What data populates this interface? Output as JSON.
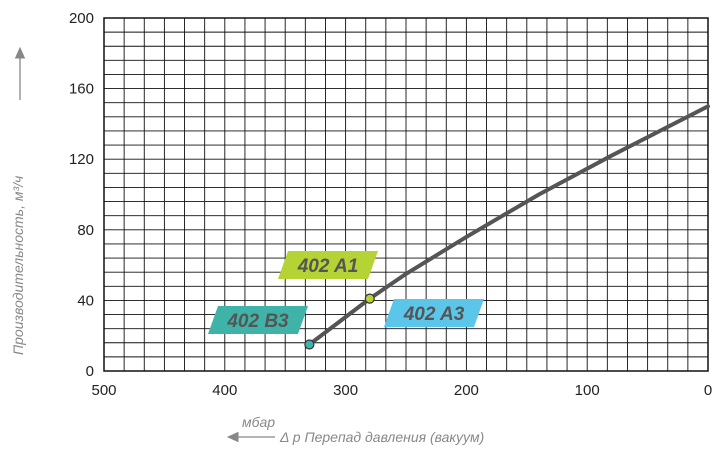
{
  "chart_data": {
    "type": "line",
    "title": "",
    "xlabel": "Δ p Перепад давления (вакуум)",
    "xunit": "мбар",
    "ylabel": "Производительность, м³/ч",
    "xlim": [
      500,
      0
    ],
    "ylim": [
      0,
      200
    ],
    "x_ticks": [
      "500",
      "400",
      "300",
      "200",
      "100",
      "0"
    ],
    "y_ticks": [
      "0",
      "40",
      "80",
      "120",
      "160",
      "200"
    ],
    "grid": true,
    "series": [
      {
        "x": [
          330,
          280,
          250,
          200,
          140,
          80,
          0
        ],
        "y": [
          15,
          41,
          55,
          76,
          100,
          122,
          150
        ],
        "color": "#555555"
      }
    ],
    "markers": [
      {
        "label": "402 B3",
        "x": 330,
        "y": 15,
        "color": "#3fb3a8"
      },
      {
        "label": "402 A1",
        "x": 280,
        "y": 41,
        "color": "#b5d334"
      },
      {
        "label": "402 A3",
        "x": 280,
        "y": 41,
        "color": "#5bc6ea"
      }
    ]
  }
}
